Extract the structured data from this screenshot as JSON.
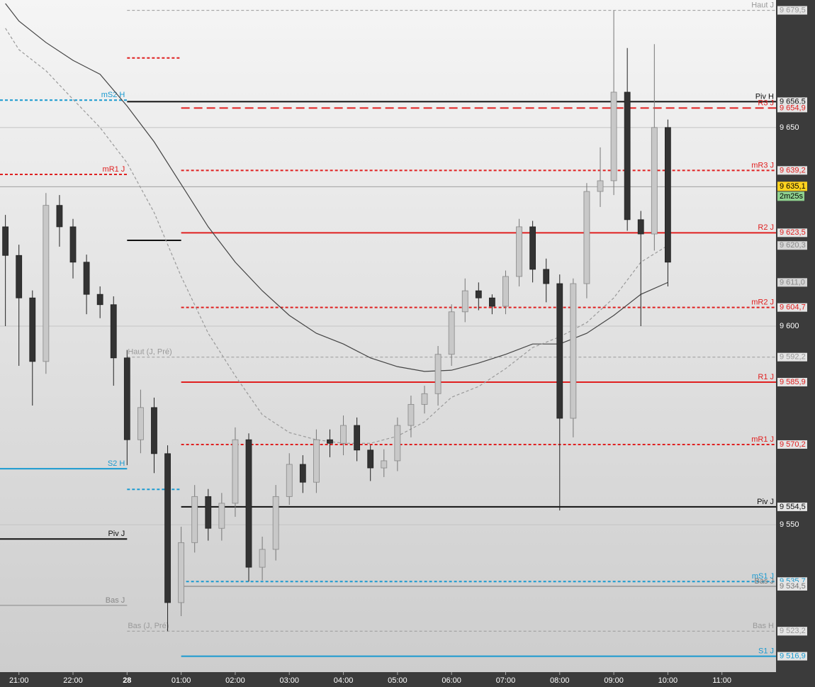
{
  "chart_data": {
    "type": "candlestick",
    "x": [
      -0.25,
      0,
      0.25,
      0.5,
      0.75,
      1,
      1.25,
      1.5,
      1.75,
      2,
      2.25,
      2.5,
      2.75,
      3,
      3.25,
      3.5,
      3.75,
      4,
      4.25,
      4.5,
      4.75,
      5,
      5.25,
      5.5,
      5.75,
      6,
      6.25,
      6.5,
      6.75,
      7,
      7.25,
      7.5,
      7.75,
      8,
      8.25,
      8.5,
      8.75,
      9,
      9.25,
      9.5,
      9.75,
      10,
      10.25,
      10.5,
      10.75,
      11,
      11.25,
      11.5,
      11.75,
      12
    ],
    "open": [
      9625.0,
      9617.8,
      9607.1,
      9591.1,
      9630.4,
      9625.0,
      9616.1,
      9608.0,
      9605.4,
      9592.0,
      9571.4,
      9579.5,
      9567.9,
      9530.4,
      9545.5,
      9557.1,
      9549.1,
      9555.4,
      9571.4,
      9539.3,
      9543.8,
      9557.1,
      9565.2,
      9560.7,
      9571.4,
      9570.5,
      9575.0,
      9568.8,
      9564.3,
      9566.1,
      9575.0,
      9580.3,
      9583.0,
      9592.9,
      9603.6,
      9608.9,
      9607.1,
      9605.0,
      9612.5,
      9625.0,
      9614.3,
      9610.7,
      9576.8,
      9610.7,
      9633.9,
      9636.6,
      9658.9,
      9626.8,
      9623.2,
      9650.0
    ],
    "high": [
      9628.0,
      9620.5,
      9609.0,
      9633.5,
      9633.0,
      9627.0,
      9618.0,
      9610.0,
      9607.5,
      9594.0,
      9584.0,
      9582.0,
      9570.0,
      9549.5,
      9560.0,
      9559.0,
      9558.0,
      9574.5,
      9573.0,
      9547.0,
      9560.0,
      9568.0,
      9567.5,
      9574.0,
      9574.0,
      9577.5,
      9577.0,
      9570.0,
      9569.0,
      9577.0,
      9582.5,
      9585.0,
      9595.0,
      9605.5,
      9612.0,
      9611.0,
      9608.0,
      9614.0,
      9627.0,
      9626.5,
      9617.0,
      9613.0,
      9612.0,
      9636.0,
      9645.0,
      9679.5,
      9670.0,
      9629.0,
      9671.0,
      9652.0
    ],
    "low": [
      9600.0,
      9590.0,
      9580.0,
      9588.0,
      9620.0,
      9612.0,
      9603.0,
      9602.0,
      9585.0,
      9565.0,
      9568.0,
      9563.0,
      9523.2,
      9527.0,
      9543.0,
      9546.0,
      9546.0,
      9552.0,
      9535.7,
      9536.0,
      9541.0,
      9555.0,
      9558.0,
      9558.0,
      9567.0,
      9567.5,
      9566.0,
      9561.0,
      9562.0,
      9563.5,
      9572.0,
      9578.0,
      9580.0,
      9590.0,
      9601.0,
      9604.0,
      9603.0,
      9603.0,
      9610.0,
      9611.0,
      9606.0,
      9553.6,
      9572.0,
      9607.0,
      9630.0,
      9633.0,
      9624.0,
      9600.0,
      9619.0,
      9610.0
    ],
    "close": [
      9617.8,
      9607.1,
      9591.1,
      9630.4,
      9625.0,
      9616.1,
      9608.0,
      9605.4,
      9592.0,
      9571.4,
      9579.5,
      9567.9,
      9530.4,
      9545.5,
      9557.1,
      9549.1,
      9555.4,
      9571.4,
      9539.3,
      9543.8,
      9557.1,
      9565.2,
      9560.7,
      9571.4,
      9570.5,
      9575.0,
      9568.8,
      9564.3,
      9566.1,
      9575.0,
      9580.3,
      9583.0,
      9592.9,
      9603.6,
      9608.9,
      9607.1,
      9605.0,
      9612.5,
      9625.0,
      9614.3,
      9610.7,
      9576.8,
      9610.7,
      9633.9,
      9636.6,
      9658.9,
      9626.8,
      9623.2,
      9650.0,
      9616.1
    ],
    "up_color": "#c8c8c8",
    "down_color": "#333333",
    "xlim": [
      -0.35,
      14.0
    ],
    "ylim": [
      9512.9,
      9682.1
    ],
    "xticks": [
      {
        "value": 0,
        "label": "21:00"
      },
      {
        "value": 1,
        "label": "22:00"
      },
      {
        "value": 2,
        "label": "28"
      },
      {
        "value": 3,
        "label": "01:00"
      },
      {
        "value": 4,
        "label": "02:00"
      },
      {
        "value": 5,
        "label": "03:00"
      },
      {
        "value": 6,
        "label": "04:00"
      },
      {
        "value": 7,
        "label": "05:00"
      },
      {
        "value": 8,
        "label": "06:00"
      },
      {
        "value": 9,
        "label": "07:00"
      },
      {
        "value": 10,
        "label": "08:00"
      },
      {
        "value": 11,
        "label": "09:00"
      },
      {
        "value": 12,
        "label": "10:00"
      },
      {
        "value": 13,
        "label": "11:00"
      }
    ],
    "yticks": [
      {
        "value": 9550,
        "label": "9 550"
      },
      {
        "value": 9600,
        "label": "9 600"
      },
      {
        "value": 9650,
        "label": "9 650"
      }
    ],
    "grid": true,
    "moving_averages": [
      {
        "color": "#444444",
        "style": "solid",
        "x": [
          -0.25,
          0,
          0.5,
          1,
          1.5,
          2,
          2.5,
          3,
          3.5,
          4,
          4.5,
          5,
          5.5,
          6,
          6.5,
          7,
          7.5,
          8,
          8.5,
          9,
          9.5,
          10,
          10.5,
          11,
          11.5,
          12
        ],
        "values": [
          9681.2,
          9676.8,
          9671.4,
          9666.9,
          9663.4,
          9655.4,
          9646.4,
          9635.7,
          9625.0,
          9616.1,
          9608.9,
          9602.7,
          9598.2,
          9595.5,
          9592.0,
          9589.8,
          9588.6,
          9588.9,
          9590.7,
          9592.9,
          9595.5,
          9595.5,
          9598.2,
          9602.7,
          9608.0,
          9611.0
        ],
        "value_label": "9 611,0"
      },
      {
        "color": "#9a9a9a",
        "style": "dashed",
        "x": [
          -0.25,
          0,
          0.5,
          1,
          1.5,
          2,
          2.5,
          3,
          3.5,
          4,
          4.5,
          5,
          5.5,
          6,
          6.5,
          7,
          7.5,
          8,
          8.5,
          9,
          9.5,
          10,
          10.5,
          11,
          11.5,
          12
        ],
        "values": [
          9675.0,
          9669.6,
          9664.3,
          9657.1,
          9650.0,
          9641.1,
          9628.6,
          9612.5,
          9598.2,
          9587.5,
          9577.7,
          9573.2,
          9571.4,
          9570.5,
          9570.5,
          9572.3,
          9575.9,
          9582.1,
          9584.8,
          9589.3,
          9594.6,
          9597.3,
          9600.9,
          9607.1,
          9616.1,
          9620.3
        ],
        "value_label": "9 620,3"
      }
    ],
    "levels": [
      {
        "name": "Haut J",
        "value": 9679.5,
        "value_label": "9 679,5",
        "color": "#999999",
        "style": "dashed",
        "width": 1,
        "from": 2
      },
      {
        "value": 9667.5,
        "color": "#e02020",
        "style": "dashed",
        "width": 2,
        "from": 2,
        "to": 3
      },
      {
        "name": "mS2 H",
        "value": 9656.9,
        "color": "#1a9ad0",
        "style": "dashed",
        "width": 2,
        "to": 2
      },
      {
        "name": "Piv H",
        "value": 9656.5,
        "value_label": "9 656,5",
        "color": "#111111",
        "style": "solid",
        "width": 2,
        "from": 2
      },
      {
        "name": "R3 J",
        "value": 9654.9,
        "value_label": "9 654,9",
        "color": "#e02020",
        "style": "longdash",
        "width": 2,
        "from": 3
      },
      {
        "name": "mR1 J",
        "value": 9638.2,
        "color": "#e02020",
        "style": "dashed",
        "width": 2,
        "to": 2
      },
      {
        "name": "mR3 J",
        "value": 9639.2,
        "value_label": "9 639,2",
        "color": "#e02020",
        "style": "dashed",
        "width": 2,
        "from": 3
      },
      {
        "value": 9621.6,
        "color": "#111111",
        "style": "solid",
        "width": 2,
        "from": 2,
        "to": 3
      },
      {
        "name": "R2 J",
        "value": 9623.5,
        "value_label": "9 623,5",
        "color": "#e02020",
        "style": "solid",
        "width": 2,
        "from": 3
      },
      {
        "name": "mR2 J",
        "value": 9604.7,
        "value_label": "9 604,7",
        "color": "#e02020",
        "style": "dashed",
        "width": 2,
        "from": 3
      },
      {
        "name": "Haut (J, Pré)",
        "value": 9592.2,
        "value_label": "9 592,2",
        "color": "#999999",
        "style": "dashed",
        "width": 1,
        "from": 2,
        "label_pos": "start"
      },
      {
        "name": "R1 J",
        "value": 9585.9,
        "value_label": "9 585,9",
        "color": "#e02020",
        "style": "solid",
        "width": 2,
        "from": 3
      },
      {
        "name": "mR1 J",
        "value": 9570.2,
        "value_label": "9 570,2",
        "color": "#e02020",
        "style": "dashed",
        "width": 2,
        "from": 3
      },
      {
        "name": "S2 H",
        "value": 9564.1,
        "color": "#1a9ad0",
        "style": "solid",
        "width": 2,
        "to": 2
      },
      {
        "value": 9558.9,
        "color": "#1a9ad0",
        "style": "dashed",
        "width": 2,
        "from": 2,
        "to": 3
      },
      {
        "name": "Piv J",
        "value": 9546.4,
        "color": "#111111",
        "style": "solid",
        "width": 2,
        "to": 2
      },
      {
        "name": "Piv J",
        "value": 9554.5,
        "value_label": "9 554,5",
        "color": "#111111",
        "style": "solid",
        "width": 2,
        "from": 3
      },
      {
        "name": "mS1 J",
        "value": 9535.7,
        "value_label": "9 535,7",
        "color": "#1a9ad0",
        "style": "dashed",
        "width": 2,
        "from": 3
      },
      {
        "name": "Bas J",
        "value": 9534.5,
        "value_label": "9 534,5",
        "color": "#777777",
        "style": "solid",
        "width": 1,
        "from": 3
      },
      {
        "name": "Bas J",
        "value": 9529.7,
        "color": "#888888",
        "style": "solid",
        "width": 1,
        "to": 2
      },
      {
        "name": "Bas (J, Pré)",
        "value": 9523.2,
        "value_label": "9 523,2",
        "color": "#999999",
        "style": "dashed",
        "width": 1,
        "from": 2,
        "to": 3,
        "label_pos": "start"
      },
      {
        "name": "Bas H",
        "value": 9523.2,
        "value_label": "9 523,2",
        "color": "#999999",
        "style": "dashed",
        "width": 1,
        "from": 3
      },
      {
        "name": "S1 J",
        "value": 9516.9,
        "value_label": "9 516,9",
        "color": "#1a9ad0",
        "style": "solid",
        "width": 2,
        "from": 3
      }
    ],
    "current": {
      "value": 9635.1,
      "value_label": "9 635,1",
      "countdown": "2m25s"
    }
  }
}
